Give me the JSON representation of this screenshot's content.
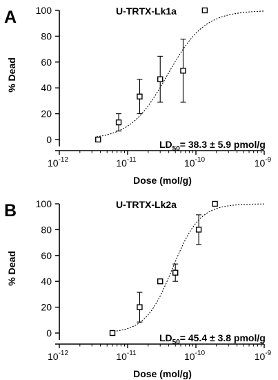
{
  "chart_data": [
    {
      "type": "scatter",
      "panel_label": "A",
      "title": "U-TRTX-Lk1a",
      "xlabel": "Dose (mol/g)",
      "ylabel": "% Dead",
      "xscale": "log",
      "xlim": [
        1e-12,
        1e-09
      ],
      "ylim": [
        0,
        100
      ],
      "x_ticks": [
        {
          "value": 1e-12,
          "base": "10",
          "exp": "-12"
        },
        {
          "value": 1e-11,
          "base": "10",
          "exp": "-11"
        },
        {
          "value": 1e-10,
          "base": "10",
          "exp": "-10"
        },
        {
          "value": 1e-09,
          "base": "10",
          "exp": "-9"
        }
      ],
      "y_ticks": [
        0,
        20,
        40,
        60,
        80,
        100
      ],
      "points": [
        {
          "x": 3.7e-12,
          "y": 0
        },
        {
          "x": 7.4e-12,
          "y": 13.3,
          "err": 6.7
        },
        {
          "x": 1.5e-11,
          "y": 33.3,
          "err": 13.3
        },
        {
          "x": 3e-11,
          "y": 46.7,
          "err": 17.8
        },
        {
          "x": 6.5e-11,
          "y": 53.3,
          "err": 24.4
        },
        {
          "x": 1.35e-10,
          "y": 100
        }
      ],
      "fit": {
        "ld50": 3.83e-11,
        "hill": 1.6
      },
      "annotation": {
        "prefix": "LD",
        "sub": "50",
        "text": "= 38.3 ± 5.9 pmol/g"
      },
      "grid": false,
      "legend": "none"
    },
    {
      "type": "scatter",
      "panel_label": "B",
      "title": "U-TRTX-Lk2a",
      "xlabel": "Dose (mol/g)",
      "ylabel": "% Dead",
      "xscale": "log",
      "xlim": [
        1e-12,
        1e-09
      ],
      "ylim": [
        0,
        100
      ],
      "x_ticks": [
        {
          "value": 1e-12,
          "base": "10",
          "exp": "-12"
        },
        {
          "value": 1e-11,
          "base": "10",
          "exp": "-11"
        },
        {
          "value": 1e-10,
          "base": "10",
          "exp": "-10"
        },
        {
          "value": 1e-09,
          "base": "10",
          "exp": "-9"
        }
      ],
      "y_ticks": [
        0,
        20,
        40,
        60,
        80,
        100
      ],
      "points": [
        {
          "x": 6e-12,
          "y": 0
        },
        {
          "x": 1.5e-11,
          "y": 20,
          "err": 11.5
        },
        {
          "x": 3e-11,
          "y": 40
        },
        {
          "x": 5e-11,
          "y": 46.7,
          "err": 6.7
        },
        {
          "x": 1.1e-10,
          "y": 80,
          "err": 11.5
        },
        {
          "x": 1.9e-10,
          "y": 100
        }
      ],
      "fit": {
        "ld50": 4.54e-11,
        "hill": 2.2
      },
      "annotation": {
        "prefix": "LD",
        "sub": "50",
        "text": "= 45.4 ± 3.8 pmol/g"
      },
      "grid": false,
      "legend": "none"
    }
  ]
}
